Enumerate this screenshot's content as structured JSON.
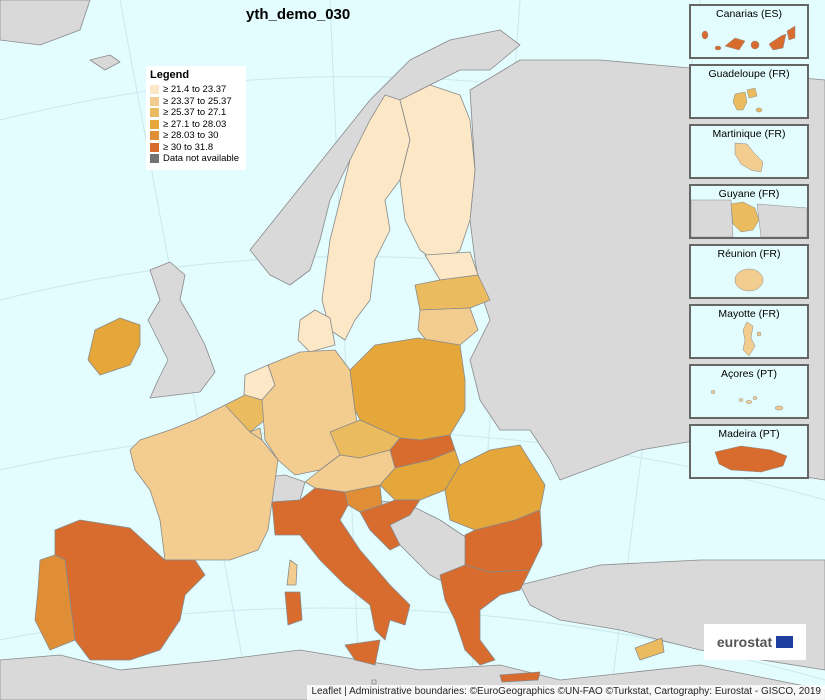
{
  "map": {
    "title": "yth_demo_030",
    "legend": {
      "title": "Legend",
      "items": [
        {
          "label": "≥ 21.4 to 23.37",
          "color": "#fce7c7"
        },
        {
          "label": "≥ 23.37 to 25.37",
          "color": "#f2cd8f"
        },
        {
          "label": "≥ 25.37 to 27.1",
          "color": "#ebbb60"
        },
        {
          "label": "≥ 27.1 to 28.03",
          "color": "#e5a63a"
        },
        {
          "label": "≥ 28.03 to 30",
          "color": "#e08e36"
        },
        {
          "label": "≥ 30 to 31.8",
          "color": "#d86b2e"
        },
        {
          "label": "Data not available",
          "color": "#737373"
        }
      ]
    },
    "insets": [
      {
        "label": "Canarias (ES)"
      },
      {
        "label": "Guadeloupe (FR)"
      },
      {
        "label": "Martinique (FR)"
      },
      {
        "label": "Guyane (FR)"
      },
      {
        "label": "Réunion (FR)"
      },
      {
        "label": "Mayotte (FR)"
      },
      {
        "label": "Açores (PT)"
      },
      {
        "label": "Madeira (PT)"
      }
    ],
    "logo_text": "eurostat",
    "attribution": "Leaflet | Administrative boundaries: ©EuroGeographics ©UN-FAO ©Turkstat, Cartography: Eurostat - GISCO, 2019",
    "colors": {
      "sea": "#e3fcfd",
      "land_no_data": "#d9d9d9",
      "border": "#8a8a8a"
    }
  }
}
